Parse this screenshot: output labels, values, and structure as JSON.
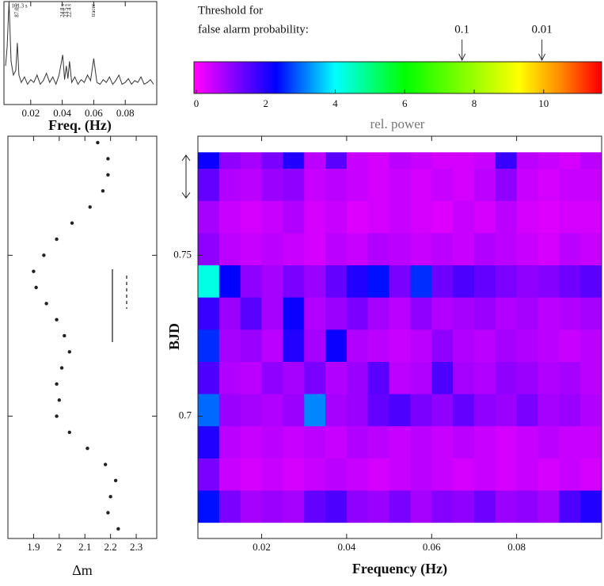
{
  "chart_data": [
    {
      "type": "line",
      "xlabel": "Freq. (Hz)",
      "color": "#333333",
      "xlim": [
        0.003,
        0.1
      ],
      "ylim": [
        0,
        1
      ],
      "xticks": [
        0.02,
        0.04,
        0.06,
        0.08
      ],
      "x": [
        0.004,
        0.005,
        0.0062,
        0.0075,
        0.009,
        0.0105,
        0.0115,
        0.0125,
        0.014,
        0.016,
        0.018,
        0.02,
        0.022,
        0.024,
        0.026,
        0.028,
        0.03,
        0.032,
        0.034,
        0.036,
        0.038,
        0.0403,
        0.0415,
        0.0426,
        0.0436,
        0.0446,
        0.046,
        0.048,
        0.05,
        0.052,
        0.054,
        0.056,
        0.058,
        0.06,
        0.062,
        0.064,
        0.066,
        0.068,
        0.07,
        0.072,
        0.074,
        0.076,
        0.078,
        0.08,
        0.082,
        0.084,
        0.086,
        0.088,
        0.09,
        0.092,
        0.094,
        0.096,
        0.098
      ],
      "values": [
        0.3,
        0.5,
        1.0,
        0.35,
        0.2,
        0.25,
        0.55,
        0.2,
        0.12,
        0.18,
        0.1,
        0.15,
        0.12,
        0.2,
        0.1,
        0.14,
        0.22,
        0.12,
        0.18,
        0.1,
        0.2,
        0.42,
        0.15,
        0.3,
        0.16,
        0.35,
        0.12,
        0.18,
        0.1,
        0.15,
        0.12,
        0.2,
        0.14,
        0.38,
        0.12,
        0.1,
        0.15,
        0.12,
        0.18,
        0.1,
        0.14,
        0.2,
        0.1,
        0.12,
        0.16,
        0.1,
        0.14,
        0.12,
        0.18,
        0.1,
        0.12,
        0.15,
        0.1
      ],
      "annotations": [
        {
          "text": "161.3 s",
          "x": 0.0062
        },
        {
          "text": "87.0 s",
          "x": 0.0115
        },
        {
          "text": "24.8 s",
          "x": 0.0403
        },
        {
          "text": "23.5 s",
          "x": 0.0426
        },
        {
          "text": "22.4 s",
          "x": 0.0446
        },
        {
          "text": "tracer",
          "x": 0.06
        }
      ]
    },
    {
      "type": "scatter",
      "xlabel": "Δm",
      "color": "#222222",
      "xlim": [
        1.8,
        2.38
      ],
      "ylim": [
        0.662,
        0.787
      ],
      "xticks": [
        1.9,
        2,
        2.1,
        2.2,
        2.3
      ],
      "x": [
        2.15,
        2.19,
        2.19,
        2.17,
        2.12,
        2.05,
        1.99,
        1.94,
        1.9,
        1.91,
        1.95,
        1.99,
        2.02,
        2.04,
        2.01,
        1.99,
        2.0,
        1.99,
        2.04,
        2.11,
        2.18,
        2.22,
        2.2,
        2.19,
        2.23
      ],
      "y": [
        0.785,
        0.78,
        0.775,
        0.77,
        0.765,
        0.76,
        0.755,
        0.75,
        0.745,
        0.74,
        0.735,
        0.73,
        0.725,
        0.72,
        0.715,
        0.71,
        0.705,
        0.7,
        0.695,
        0.69,
        0.685,
        0.68,
        0.675,
        0.67,
        0.665
      ]
    },
    {
      "type": "heatmap",
      "xlabel": "Frequency (Hz)",
      "ylabel": "BJD",
      "xlim": [
        0.005,
        0.1
      ],
      "ylim": [
        0.662,
        0.787
      ],
      "xticks": [
        0.02,
        0.04,
        0.06,
        0.08
      ],
      "yticks": [
        0.7,
        0.75
      ],
      "xbins": [
        0.005,
        0.01,
        0.015,
        0.02,
        0.025,
        0.03,
        0.035,
        0.04,
        0.045,
        0.05,
        0.055,
        0.06,
        0.065,
        0.07,
        0.075,
        0.08,
        0.085,
        0.09,
        0.095,
        0.1
      ],
      "ybins": [
        0.667,
        0.677,
        0.687,
        0.697,
        0.707,
        0.717,
        0.727,
        0.737,
        0.747,
        0.757,
        0.767,
        0.777,
        0.782
      ],
      "values": [
        [
          2.4,
          1.2,
          0.8,
          0.9,
          0.8,
          1.4,
          1.6,
          1.0,
          0.9,
          1.2,
          0.8,
          1.1,
          1.0,
          1.3,
          0.9,
          1.0,
          0.8,
          1.6,
          2.0
        ],
        [
          1.2,
          0.5,
          0.4,
          0.5,
          0.4,
          0.5,
          0.6,
          0.5,
          0.4,
          0.5,
          0.6,
          0.5,
          0.4,
          0.5,
          0.4,
          0.5,
          0.4,
          0.5,
          0.4
        ],
        [
          2.0,
          0.6,
          0.5,
          0.6,
          0.5,
          0.6,
          0.5,
          0.7,
          0.6,
          0.5,
          0.6,
          0.5,
          0.6,
          0.5,
          0.4,
          0.5,
          0.6,
          0.5,
          0.5
        ],
        [
          3.0,
          0.9,
          0.8,
          0.7,
          0.9,
          3.2,
          0.8,
          0.9,
          1.4,
          1.6,
          1.2,
          1.0,
          1.4,
          1.0,
          0.9,
          1.2,
          0.8,
          0.9,
          0.7
        ],
        [
          1.6,
          0.7,
          0.6,
          1.0,
          0.8,
          1.2,
          0.7,
          0.9,
          1.5,
          0.6,
          0.7,
          1.6,
          0.8,
          0.7,
          1.0,
          0.9,
          0.7,
          0.8,
          0.6
        ],
        [
          2.6,
          0.8,
          0.9,
          0.6,
          2.0,
          0.8,
          2.2,
          0.7,
          0.6,
          0.5,
          0.6,
          1.0,
          0.7,
          0.6,
          0.8,
          0.7,
          0.6,
          0.5,
          0.6
        ],
        [
          1.8,
          0.9,
          1.5,
          0.8,
          2.2,
          0.7,
          0.9,
          1.2,
          0.8,
          0.6,
          1.0,
          0.7,
          0.8,
          0.9,
          0.7,
          0.8,
          0.6,
          0.7,
          0.8
        ],
        [
          4.2,
          2.3,
          1.0,
          0.8,
          1.2,
          0.9,
          1.4,
          2.0,
          2.4,
          1.2,
          2.6,
          1.3,
          1.6,
          1.4,
          1.2,
          1.0,
          1.1,
          1.3,
          1.5
        ],
        [
          1.0,
          0.6,
          0.5,
          0.6,
          0.5,
          0.4,
          0.6,
          0.5,
          0.7,
          0.6,
          0.5,
          0.6,
          0.5,
          0.7,
          0.6,
          0.5,
          0.4,
          0.6,
          0.5
        ],
        [
          0.8,
          0.5,
          0.4,
          0.5,
          0.7,
          0.4,
          0.5,
          0.3,
          0.4,
          0.5,
          0.4,
          0.3,
          0.5,
          0.4,
          0.6,
          0.4,
          0.3,
          0.4,
          0.4
        ],
        [
          1.4,
          0.7,
          0.6,
          0.9,
          1.0,
          0.5,
          0.6,
          0.5,
          0.4,
          0.5,
          0.4,
          0.5,
          0.4,
          0.6,
          1.0,
          0.5,
          0.4,
          0.5,
          0.5
        ],
        [
          2.2,
          1.0,
          0.8,
          1.2,
          2.0,
          0.6,
          1.5,
          0.5,
          0.4,
          0.6,
          0.5,
          0.4,
          0.4,
          0.5,
          1.8,
          0.6,
          0.5,
          0.4,
          0.6
        ]
      ],
      "colorscale": [
        [
          0,
          "#ff00ff"
        ],
        [
          2.3,
          "#0000ff"
        ],
        [
          4,
          "#00ffff"
        ],
        [
          6,
          "#00ff00"
        ],
        [
          9.3,
          "#ffff00"
        ],
        [
          10.5,
          "#ff8800"
        ],
        [
          11.6,
          "#ff0000"
        ]
      ],
      "colorbar_title": "Threshold for",
      "colorbar_subtitle": "false alarm probability:",
      "colorbar_label": "rel. power",
      "colorbar_lim": [
        0,
        11.6
      ],
      "colorbar_ticks": [
        0,
        2,
        4,
        6,
        8,
        10
      ],
      "thresholds": [
        {
          "value": 7.65,
          "label": "0.1"
        },
        {
          "value": 9.95,
          "label": "0.01"
        }
      ]
    }
  ]
}
